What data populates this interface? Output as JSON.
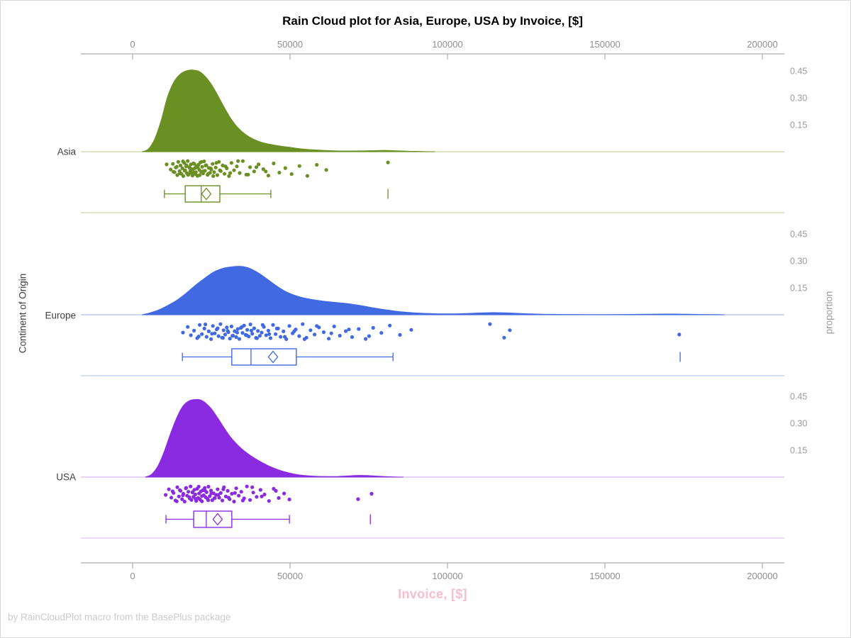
{
  "header": {
    "title": "Rain Cloud plot for Asia, Europe, USA by Invoice, [$]"
  },
  "axes": {
    "x_top": {
      "tick_labels": [
        "0",
        "50000",
        "100000",
        "150000",
        "200000"
      ]
    },
    "x_bottom": {
      "label": "Invoice, [$]",
      "tick_labels": [
        "0",
        "50000",
        "100000",
        "150000",
        "200000"
      ]
    },
    "y_left": {
      "label": "Continent of Origin"
    },
    "y_right": {
      "label": "proportion",
      "tick_labels": [
        "0.15",
        "0.30",
        "0.45"
      ]
    }
  },
  "footer": {
    "credit": "by RainCloudPlot macro from the BasePlus package"
  },
  "colors": {
    "axis_line": "#acacac",
    "tick_text": "#8f8f8f",
    "asia": "#6a8f23",
    "asia_light": "#c3d49d",
    "europe": "#4169e1",
    "europe_light": "#abc0ee",
    "usa": "#8a2be2",
    "usa_light": "#dab9f3",
    "xlabel_pink": "#f7bdcb",
    "footer_gray": "#cbcbcb"
  },
  "chart_data": {
    "type": "raincloud",
    "title": "Rain Cloud plot for Asia, Europe, USA by Invoice, [$]",
    "xlabel": "Invoice, [$]",
    "ylabel_left": "Continent of Origin",
    "ylabel_right": "proportion",
    "xlim": [
      0,
      200000
    ],
    "x_ticks": [
      0,
      50000,
      100000,
      150000,
      200000
    ],
    "proportion_ticks": [
      0.15,
      0.3,
      0.45
    ],
    "categories": [
      "Asia",
      "Europe",
      "USA"
    ],
    "jitter_cycle": [
      0.1,
      -0.62,
      0.45,
      -0.15,
      0.82,
      -0.88,
      0.3,
      -0.42,
      0.65,
      -0.05,
      0.95,
      -0.75,
      0.2,
      -0.3,
      0.55,
      -0.98,
      0.75,
      -0.2,
      0.35,
      -0.55,
      0.05,
      0.88,
      -0.68,
      0.5,
      -0.08,
      0.68,
      -0.35,
      0.92,
      -0.5,
      0.15,
      -0.8,
      0.4,
      -0.25,
      0.6,
      -0.95,
      0.25,
      -0.45,
      0.78,
      -0.1,
      0.52
    ],
    "series": [
      {
        "id": "asia",
        "name": "Asia",
        "color": "#6a8f23",
        "light_color": "#c3d49d",
        "density": [
          [
            3000,
            0
          ],
          [
            5000,
            0.015
          ],
          [
            7000,
            0.07
          ],
          [
            9000,
            0.17
          ],
          [
            11000,
            0.3
          ],
          [
            13000,
            0.385
          ],
          [
            15000,
            0.43
          ],
          [
            17000,
            0.45
          ],
          [
            19000,
            0.455
          ],
          [
            21000,
            0.448
          ],
          [
            23000,
            0.42
          ],
          [
            25000,
            0.375
          ],
          [
            27000,
            0.315
          ],
          [
            29000,
            0.25
          ],
          [
            31000,
            0.19
          ],
          [
            33000,
            0.142
          ],
          [
            35000,
            0.108
          ],
          [
            37000,
            0.083
          ],
          [
            39000,
            0.065
          ],
          [
            41000,
            0.052
          ],
          [
            44000,
            0.04
          ],
          [
            47000,
            0.031
          ],
          [
            50000,
            0.024
          ],
          [
            53000,
            0.017
          ],
          [
            56000,
            0.012
          ],
          [
            60000,
            0.008
          ],
          [
            64000,
            0.005
          ],
          [
            68000,
            0.004
          ],
          [
            72000,
            0.0045
          ],
          [
            76000,
            0.006
          ],
          [
            80000,
            0.0075
          ],
          [
            84000,
            0.005
          ],
          [
            88000,
            0.0025
          ],
          [
            92000,
            0.001
          ],
          [
            96000,
            0
          ]
        ],
        "box": {
          "whisker_low": 10100,
          "q1": 16700,
          "median": 21800,
          "mean": 23400,
          "q3": 27700,
          "whisker_high": 43900,
          "outliers": [
            81100
          ]
        },
        "points": [
          12100,
          12800,
          13300,
          13700,
          14200,
          14500,
          14900,
          15200,
          15500,
          15800,
          16100,
          16400,
          16700,
          17000,
          17200,
          17500,
          17800,
          18000,
          18300,
          18500,
          18800,
          19000,
          19300,
          19500,
          19800,
          20000,
          20300,
          20600,
          20900,
          21200,
          21500,
          21800,
          22100,
          22400,
          22700,
          23000,
          23400,
          23800,
          24200,
          24600,
          25000,
          25400,
          25900,
          26400,
          26900,
          27400,
          28000,
          28600,
          29200,
          29900,
          30600,
          31400,
          32200,
          33100,
          34000,
          35000,
          36100,
          37300,
          38600,
          40000,
          41500,
          43100,
          44800,
          46600,
          48500,
          50500,
          53000,
          55500,
          58500,
          61500,
          81100,
          13000,
          14000,
          15000,
          16000,
          16500,
          17100,
          17600,
          18100,
          18600,
          19100,
          19600,
          20100,
          20700,
          21300,
          21900,
          22500,
          23200,
          24000,
          24800,
          25600,
          26600,
          27700,
          29500,
          31000,
          33500,
          36700,
          39300,
          42300,
          10800
        ]
      },
      {
        "id": "europe",
        "name": "Europe",
        "color": "#4169e1",
        "light_color": "#abc0ee",
        "density": [
          [
            3000,
            0
          ],
          [
            5000,
            0.008
          ],
          [
            8000,
            0.025
          ],
          [
            11000,
            0.05
          ],
          [
            14000,
            0.08
          ],
          [
            17000,
            0.12
          ],
          [
            20000,
            0.165
          ],
          [
            23000,
            0.205
          ],
          [
            26000,
            0.24
          ],
          [
            29000,
            0.26
          ],
          [
            32000,
            0.268
          ],
          [
            34000,
            0.27
          ],
          [
            36000,
            0.265
          ],
          [
            38000,
            0.252
          ],
          [
            40000,
            0.232
          ],
          [
            42000,
            0.208
          ],
          [
            44000,
            0.182
          ],
          [
            46000,
            0.157
          ],
          [
            48000,
            0.135
          ],
          [
            50000,
            0.118
          ],
          [
            52000,
            0.105
          ],
          [
            54000,
            0.095
          ],
          [
            57000,
            0.085
          ],
          [
            60000,
            0.077
          ],
          [
            63000,
            0.071
          ],
          [
            66000,
            0.066
          ],
          [
            69000,
            0.06
          ],
          [
            72000,
            0.052
          ],
          [
            75000,
            0.043
          ],
          [
            78000,
            0.034
          ],
          [
            81000,
            0.026
          ],
          [
            84000,
            0.019
          ],
          [
            87000,
            0.014
          ],
          [
            90000,
            0.01
          ],
          [
            94000,
            0.007
          ],
          [
            98000,
            0.005
          ],
          [
            102000,
            0.005
          ],
          [
            106000,
            0.007
          ],
          [
            110000,
            0.01
          ],
          [
            114000,
            0.012
          ],
          [
            118000,
            0.011
          ],
          [
            122000,
            0.008
          ],
          [
            126000,
            0.005
          ],
          [
            130000,
            0.003
          ],
          [
            135000,
            0.002
          ],
          [
            140000,
            0.0015
          ],
          [
            148000,
            0.001
          ],
          [
            156000,
            0.0015
          ],
          [
            163000,
            0.003
          ],
          [
            169000,
            0.004
          ],
          [
            174000,
            0.0035
          ],
          [
            179000,
            0.002
          ],
          [
            184000,
            0.001
          ],
          [
            188000,
            0
          ]
        ],
        "box": {
          "whisker_low": 15800,
          "q1": 31500,
          "median": 37600,
          "mean": 44600,
          "q3": 52000,
          "whisker_high": 82700,
          "outliers": [
            173900
          ]
        },
        "points": [
          16000,
          17500,
          18500,
          19500,
          20500,
          21300,
          22000,
          22800,
          23500,
          24200,
          24900,
          25500,
          26100,
          26700,
          27300,
          27900,
          28400,
          28900,
          29400,
          29900,
          30400,
          30900,
          31400,
          31900,
          32400,
          32900,
          33400,
          33900,
          34400,
          34900,
          35400,
          35900,
          36400,
          36900,
          37400,
          38000,
          38600,
          39200,
          39800,
          40400,
          41000,
          41700,
          42400,
          43100,
          43800,
          44600,
          45400,
          46200,
          47000,
          47900,
          48800,
          49800,
          50800,
          51800,
          52900,
          54000,
          55200,
          56500,
          57800,
          59200,
          60700,
          62300,
          64000,
          65800,
          67700,
          69700,
          71800,
          74000,
          76400,
          79000,
          81700,
          84900,
          88500,
          21000,
          23100,
          25200,
          27000,
          28700,
          30200,
          31700,
          33200,
          34700,
          36200,
          37700,
          39500,
          41300,
          43400,
          45800,
          48300,
          51300,
          54600,
          58500,
          63100,
          68700,
          75100,
          113500,
          118000,
          119800,
          173600
        ]
      },
      {
        "id": "usa",
        "name": "USA",
        "color": "#8a2be2",
        "light_color": "#dab9f3",
        "density": [
          [
            4000,
            0
          ],
          [
            6000,
            0.015
          ],
          [
            8000,
            0.06
          ],
          [
            10000,
            0.14
          ],
          [
            12000,
            0.24
          ],
          [
            14000,
            0.33
          ],
          [
            16000,
            0.395
          ],
          [
            18000,
            0.425
          ],
          [
            20000,
            0.432
          ],
          [
            21500,
            0.43
          ],
          [
            23000,
            0.415
          ],
          [
            25000,
            0.38
          ],
          [
            27000,
            0.33
          ],
          [
            29000,
            0.275
          ],
          [
            31000,
            0.225
          ],
          [
            33000,
            0.185
          ],
          [
            35000,
            0.152
          ],
          [
            37000,
            0.125
          ],
          [
            39000,
            0.102
          ],
          [
            41000,
            0.082
          ],
          [
            43000,
            0.064
          ],
          [
            45000,
            0.049
          ],
          [
            47000,
            0.036
          ],
          [
            49000,
            0.026
          ],
          [
            51000,
            0.018
          ],
          [
            53000,
            0.012
          ],
          [
            56000,
            0.007
          ],
          [
            59000,
            0.004
          ],
          [
            62000,
            0.003
          ],
          [
            65000,
            0.003
          ],
          [
            68000,
            0.006
          ],
          [
            71000,
            0.009
          ],
          [
            74000,
            0.009
          ],
          [
            77000,
            0.006
          ],
          [
            80000,
            0.003
          ],
          [
            83000,
            0.001
          ],
          [
            86000,
            0
          ]
        ],
        "box": {
          "whisker_low": 10600,
          "q1": 19400,
          "median": 23400,
          "mean": 27000,
          "q3": 31500,
          "whisker_high": 49800,
          "outliers": [
            75500
          ]
        },
        "points": [
          10500,
          11500,
          12300,
          13000,
          13600,
          14200,
          14700,
          15200,
          15700,
          16100,
          16500,
          16900,
          17300,
          17700,
          18100,
          18400,
          18700,
          19000,
          19300,
          19600,
          19900,
          20200,
          20500,
          20800,
          21100,
          21400,
          21700,
          22000,
          22300,
          22600,
          22900,
          23200,
          23500,
          23800,
          24100,
          24500,
          24900,
          25300,
          25700,
          26100,
          26500,
          27000,
          27500,
          28000,
          28500,
          29000,
          29600,
          30200,
          30800,
          31500,
          32200,
          32900,
          33700,
          34500,
          35400,
          36300,
          37300,
          38300,
          39400,
          40600,
          41900,
          43300,
          44800,
          46400,
          48100,
          49800,
          12700,
          14000,
          15000,
          16000,
          17000,
          18000,
          19000,
          20000,
          21000,
          22000,
          23000,
          24000,
          25000,
          26000,
          27200,
          28800,
          30500,
          32500,
          35000,
          38000,
          41000,
          45500,
          71600,
          75900
        ]
      }
    ]
  }
}
